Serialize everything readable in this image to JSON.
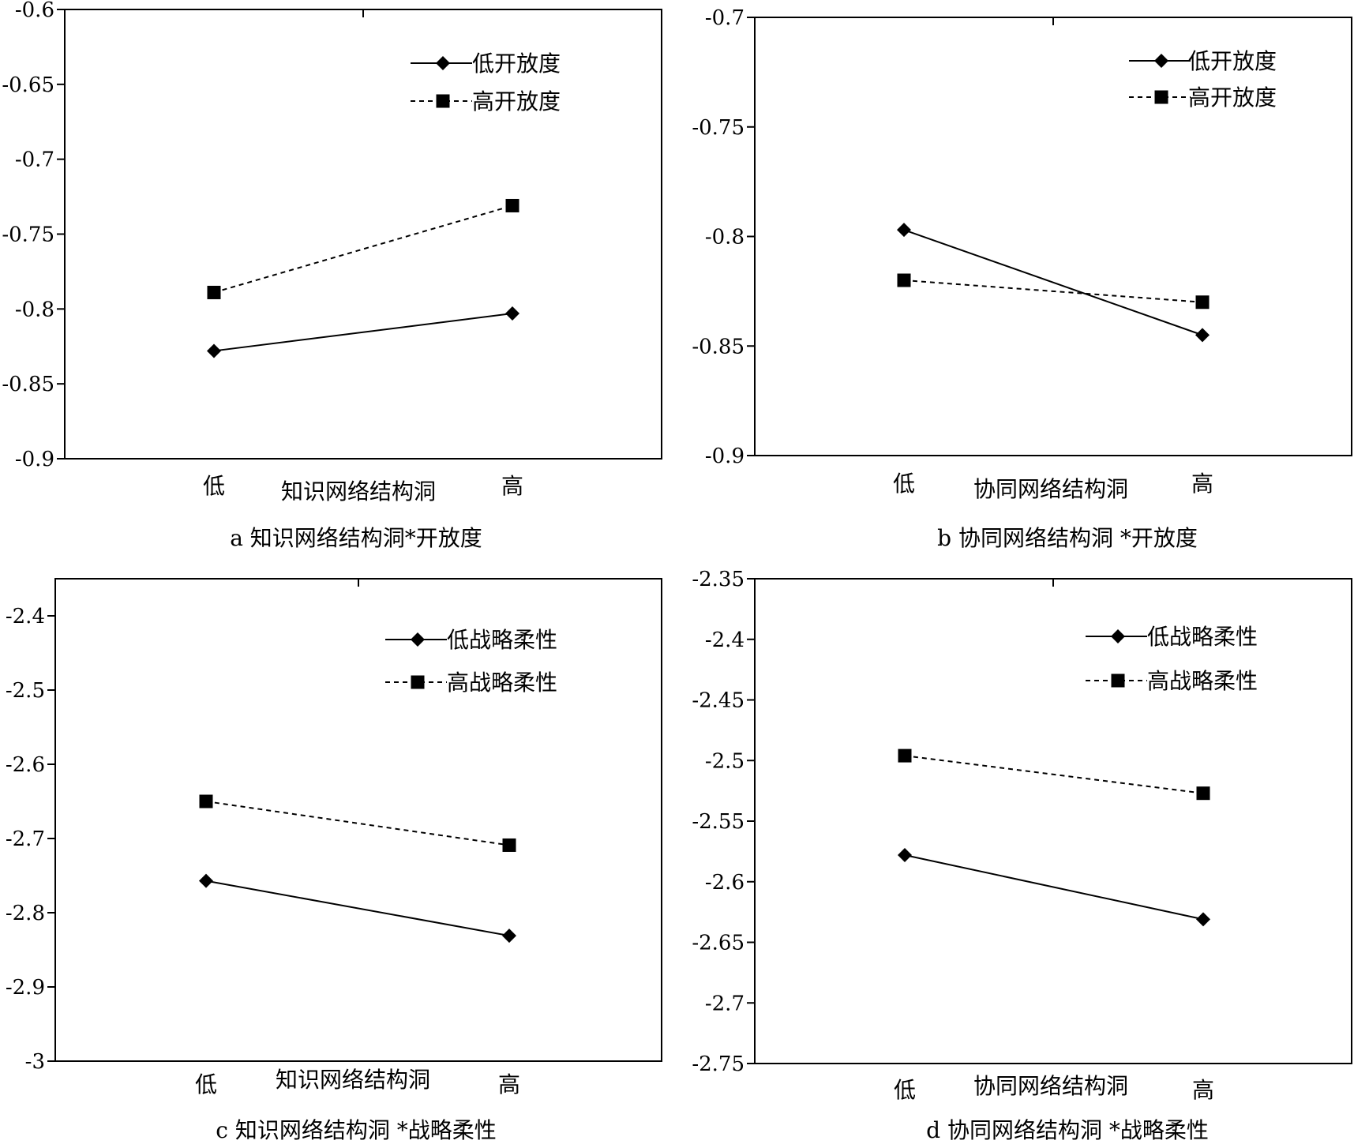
{
  "chart_data": [
    {
      "type": "line",
      "caption": "a 知识网络结构洞*开放度",
      "xlabel": "知识网络结构洞",
      "categories": [
        "低",
        "高"
      ],
      "ylim": [
        -0.9,
        -0.6
      ],
      "yticks": [
        "-0.6",
        "-0.65",
        "-0.7",
        "-0.75",
        "-0.8",
        "-0.85",
        "-0.9"
      ],
      "series": [
        {
          "name": "低开放度",
          "values": [
            -0.828,
            -0.803
          ],
          "style": "solid",
          "marker": "diamond"
        },
        {
          "name": "高开放度",
          "values": [
            -0.789,
            -0.731
          ],
          "style": "dashed",
          "marker": "square"
        }
      ],
      "legend": "top-right",
      "grid": false
    },
    {
      "type": "line",
      "caption": "b 协同网络结构洞 *开放度",
      "xlabel": "协同网络结构洞",
      "categories": [
        "低",
        "高"
      ],
      "ylim": [
        -0.9,
        -0.7
      ],
      "yticks": [
        "-0.7",
        "-0.75",
        "-0.8",
        "-0.85",
        "-0.9"
      ],
      "series": [
        {
          "name": "低开放度",
          "values": [
            -0.797,
            -0.845
          ],
          "style": "solid",
          "marker": "diamond"
        },
        {
          "name": "高开放度",
          "values": [
            -0.82,
            -0.83
          ],
          "style": "dashed",
          "marker": "square"
        }
      ],
      "legend": "top-right",
      "grid": false
    },
    {
      "type": "line",
      "caption": "c 知识网络结构洞 *战略柔性",
      "xlabel": "知识网络结构洞",
      "categories": [
        "低",
        "高"
      ],
      "ylim": [
        -3.0,
        -2.35
      ],
      "yticks": [
        "-2.4",
        "-2.5",
        "-2.6",
        "-2.7",
        "-2.8",
        "-2.9",
        "-3"
      ],
      "series": [
        {
          "name": "低战略柔性",
          "values": [
            -2.757,
            -2.831
          ],
          "style": "solid",
          "marker": "diamond"
        },
        {
          "name": "高战略柔性",
          "values": [
            -2.65,
            -2.709
          ],
          "style": "dashed",
          "marker": "square"
        }
      ],
      "legend": "top-right",
      "grid": false
    },
    {
      "type": "line",
      "caption": "d 协同网络结构洞 *战略柔性",
      "xlabel": "协同网络结构洞",
      "categories": [
        "低",
        "高"
      ],
      "ylim": [
        -2.75,
        -2.35
      ],
      "yticks": [
        "-2.35",
        "-2.4",
        "-2.45",
        "-2.5",
        "-2.55",
        "-2.6",
        "-2.65",
        "-2.7",
        "-2.75"
      ],
      "series": [
        {
          "name": "低战略柔性",
          "values": [
            -2.578,
            -2.631
          ],
          "style": "solid",
          "marker": "diamond"
        },
        {
          "name": "高战略柔性",
          "values": [
            -2.496,
            -2.527
          ],
          "style": "dashed",
          "marker": "square"
        }
      ],
      "legend": "top-right",
      "grid": false
    }
  ]
}
